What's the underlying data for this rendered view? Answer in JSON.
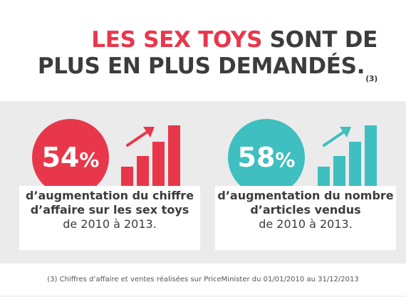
{
  "title": {
    "highlight": "LES SEX TOYS",
    "rest_line1": "SONT DE",
    "line2": "PLUS EN PLUS DEMANDÉS.",
    "ref": "(3)"
  },
  "stats": [
    {
      "value": "54",
      "unit": "%",
      "color": "#e8374b",
      "bold_text": "d’augmentation du chiffre d’affaire sur les sex toys",
      "normal_text": "de 2010 à 2013."
    },
    {
      "value": "58",
      "unit": "%",
      "color": "#3fbfbf",
      "bold_text": "d’augmentation du nombre d’articles vendus",
      "normal_text": "de 2010 à 2013."
    }
  ],
  "footnote": "(3) Chiffres d’affaire et ventes réalisées sur PriceMinister du 01/01/2010 au 31/12/2013",
  "icons": [
    "rising-bars-icon",
    "up-right-arrow-icon"
  ]
}
